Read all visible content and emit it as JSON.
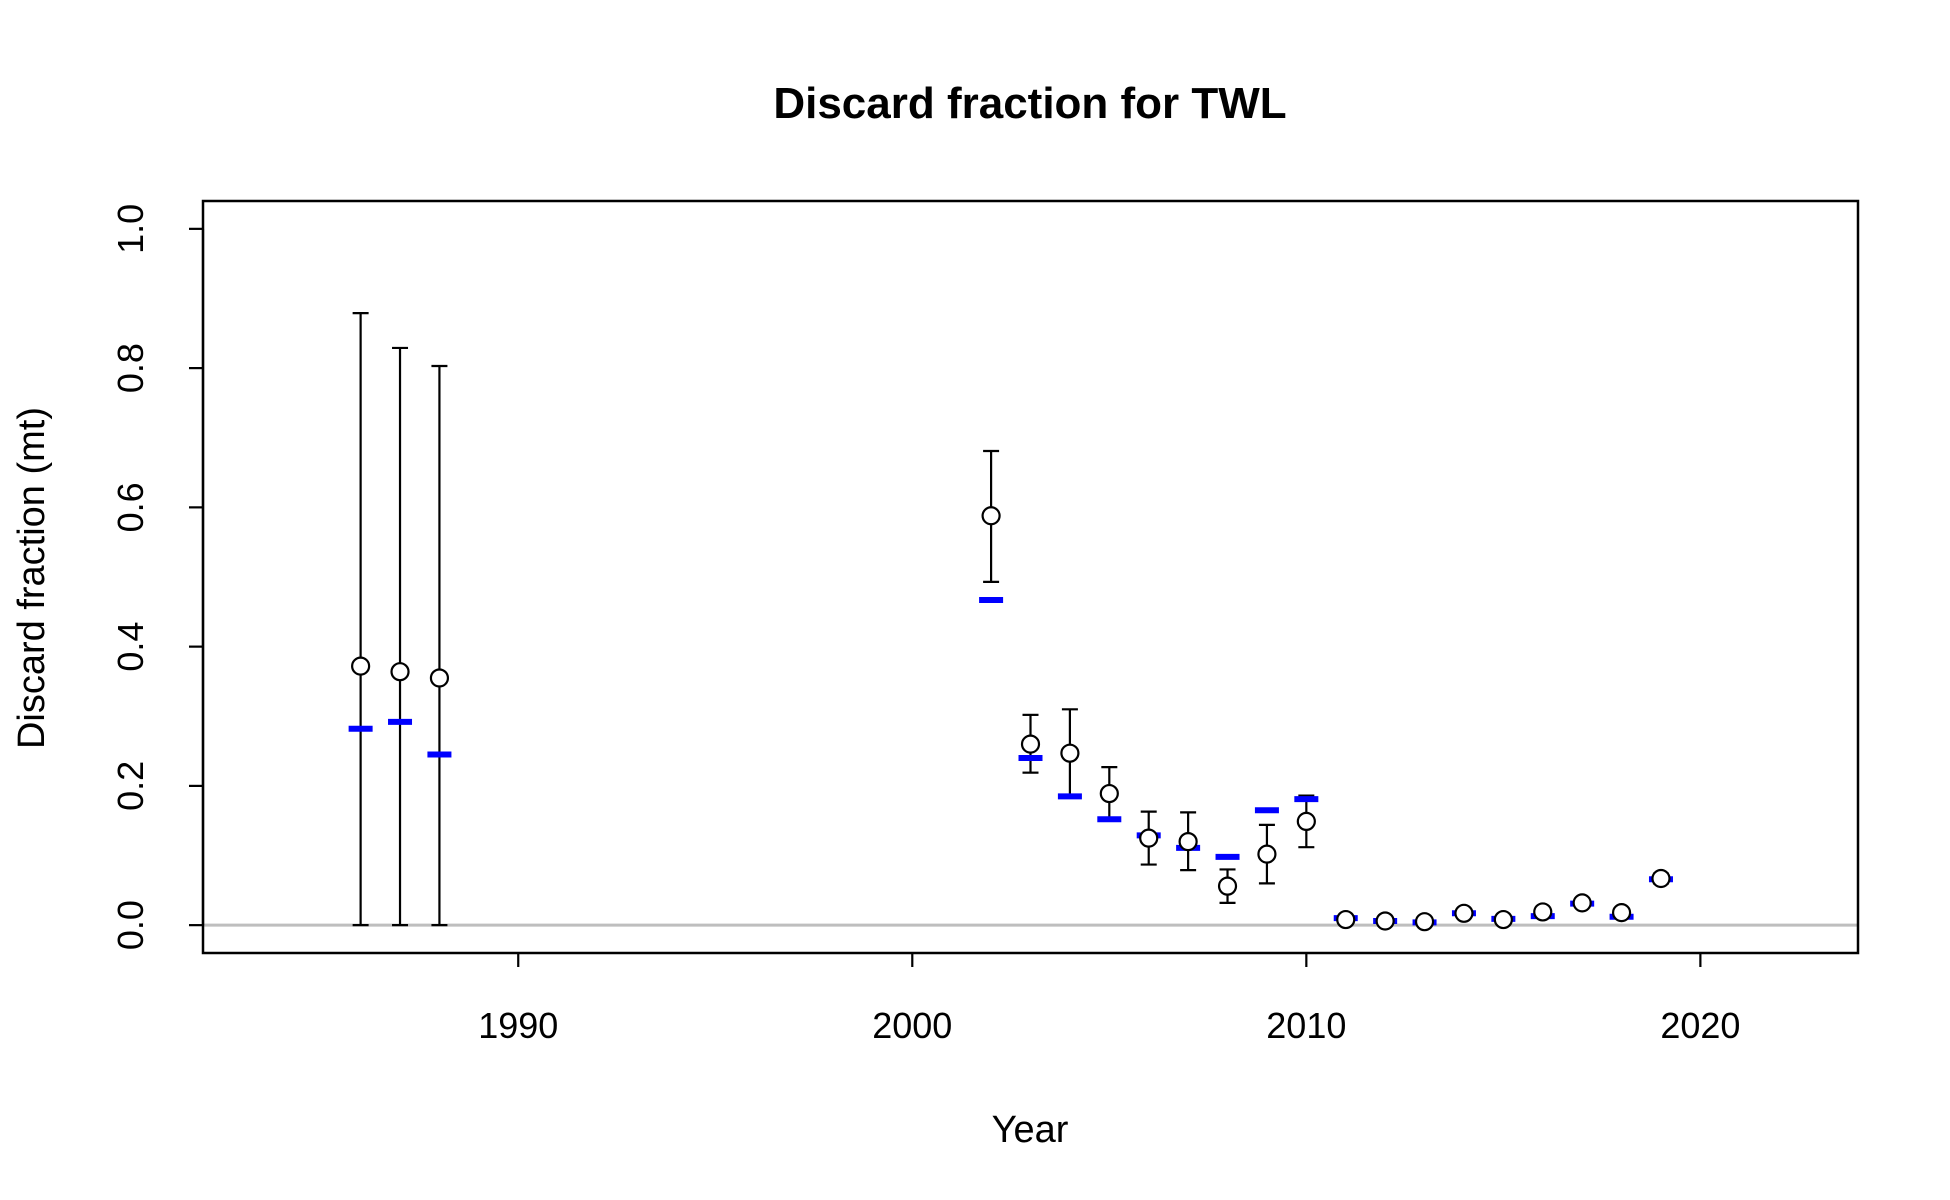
{
  "chart_data": {
    "type": "scatter",
    "title": "Discard fraction for TWL",
    "xlabel": "Year",
    "ylabel": "Discard fraction (mt)",
    "xlim": [
      1982,
      2024
    ],
    "ylim": [
      -0.04,
      1.04
    ],
    "x_ticks": [
      1990,
      2000,
      2010,
      2020
    ],
    "y_ticks": [
      0.0,
      0.2,
      0.4,
      0.6,
      0.8,
      1.0
    ],
    "y_tick_labels": [
      "0.0",
      "0.2",
      "0.4",
      "0.6",
      "0.8",
      "1.0"
    ],
    "reference_line": 0,
    "grid": false,
    "colors": {
      "observed": "#000000",
      "expected": "#0000ff",
      "reference": "#bebebe"
    },
    "series": [
      {
        "name": "observed",
        "marker": "open-circle",
        "x": [
          1986,
          1987,
          1988,
          2002,
          2003,
          2004,
          2005,
          2006,
          2007,
          2008,
          2009,
          2010,
          2011,
          2012,
          2013,
          2014,
          2015,
          2016,
          2017,
          2018,
          2019
        ],
        "y": [
          0.372,
          0.364,
          0.355,
          0.588,
          0.26,
          0.247,
          0.189,
          0.125,
          0.12,
          0.056,
          0.102,
          0.149,
          0.008,
          0.006,
          0.005,
          0.017,
          0.008,
          0.019,
          0.032,
          0.018,
          0.067
        ],
        "lower": [
          0.0,
          0.0,
          0.0,
          0.493,
          0.219,
          0.185,
          0.151,
          0.087,
          0.079,
          0.032,
          0.06,
          0.112,
          0.004,
          0.003,
          0.002,
          0.012,
          0.005,
          0.014,
          0.026,
          0.013,
          0.06
        ],
        "upper": [
          0.879,
          0.829,
          0.803,
          0.681,
          0.302,
          0.31,
          0.227,
          0.163,
          0.162,
          0.08,
          0.144,
          0.186,
          0.012,
          0.009,
          0.008,
          0.022,
          0.011,
          0.024,
          0.038,
          0.023,
          0.074
        ]
      },
      {
        "name": "expected",
        "marker": "dash",
        "x": [
          1986,
          1987,
          1988,
          2002,
          2003,
          2004,
          2005,
          2006,
          2007,
          2008,
          2009,
          2010,
          2011,
          2012,
          2013,
          2014,
          2015,
          2016,
          2017,
          2018,
          2019
        ],
        "y": [
          0.282,
          0.292,
          0.245,
          0.467,
          0.24,
          0.185,
          0.152,
          0.129,
          0.111,
          0.098,
          0.165,
          0.181,
          0.01,
          0.006,
          0.004,
          0.017,
          0.009,
          0.013,
          0.031,
          0.012,
          0.066
        ]
      }
    ]
  }
}
